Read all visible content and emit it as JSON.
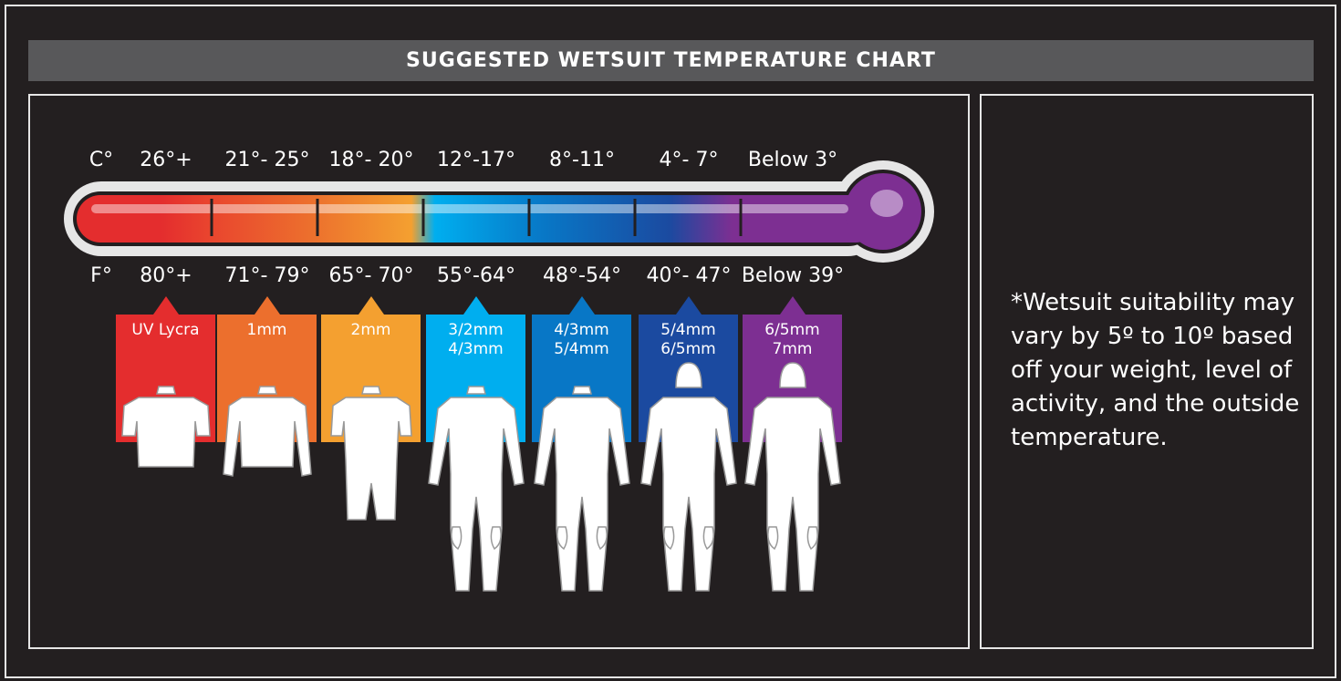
{
  "title": "SUGGESTED WETSUIT TEMPERATURE CHART",
  "celsius_unit": "C°",
  "fahrenheit_unit": "F°",
  "ranges": [
    {
      "c": "26°+",
      "f": "80°+",
      "suit": [
        "UV Lycra"
      ],
      "color": "#e42d2e",
      "suit_type": "short-sleeve-top"
    },
    {
      "c": "21°- 25°",
      "f": "71°- 79°",
      "suit": [
        "1mm"
      ],
      "color": "#ec6f2d",
      "suit_type": "long-sleeve-top"
    },
    {
      "c": "18°- 20°",
      "f": "65°- 70°",
      "suit": [
        "2mm"
      ],
      "color": "#f4a030",
      "suit_type": "shorty"
    },
    {
      "c": "12°-17°",
      "f": "55°-64°",
      "suit": [
        "3/2mm",
        "4/3mm"
      ],
      "color": "#00aeef",
      "suit_type": "fullsuit"
    },
    {
      "c": "8°-11°",
      "f": "48°-54°",
      "suit": [
        "4/3mm",
        "5/4mm"
      ],
      "color": "#0877c6",
      "suit_type": "fullsuit"
    },
    {
      "c": "4°- 7°",
      "f": "40°- 47°",
      "suit": [
        "5/4mm",
        "6/5mm"
      ],
      "color": "#1b4aa0",
      "suit_type": "hooded-fullsuit"
    },
    {
      "c": "Below 3°",
      "f": "Below 39°",
      "suit": [
        "6/5mm",
        "7mm"
      ],
      "color": "#7d2f92",
      "suit_type": "hooded-fullsuit"
    }
  ],
  "note": "*Wetsuit suitability may vary by 5º to 10º based off your weight, level of activity, and the outside temperature."
}
